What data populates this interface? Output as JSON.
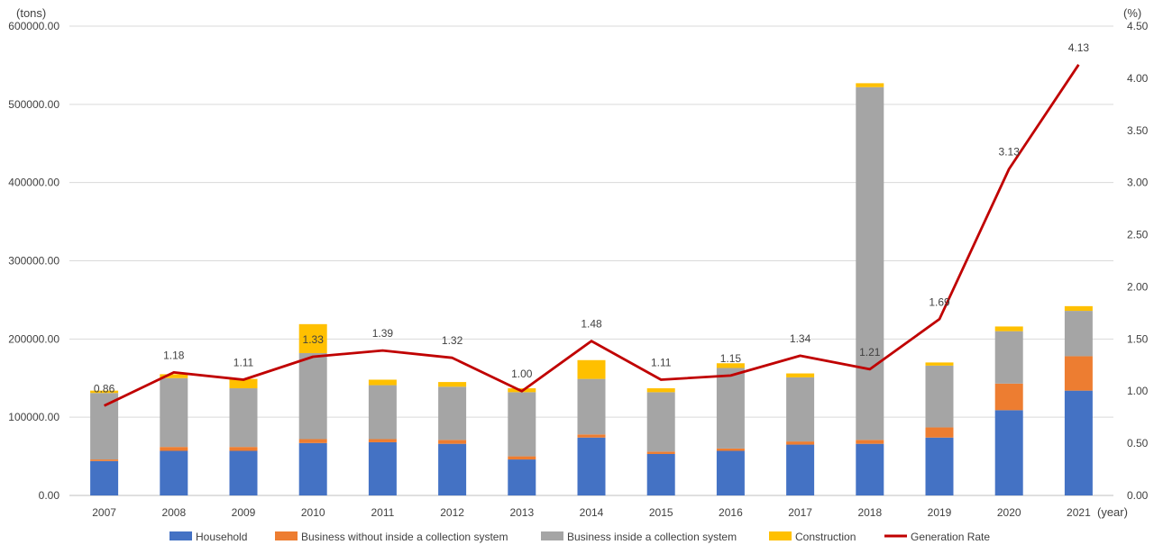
{
  "chart_data": {
    "type": "bar+line",
    "title": "",
    "left_unit": "(tons)",
    "right_unit": "(%)",
    "xlabel": "(year)",
    "categories": [
      "2007",
      "2008",
      "2009",
      "2010",
      "2011",
      "2012",
      "2013",
      "2014",
      "2015",
      "2016",
      "2017",
      "2018",
      "2019",
      "2020",
      "2021"
    ],
    "left_axis": {
      "min": 0,
      "max": 600000,
      "tick_labels": [
        "0.00",
        "100000.00",
        "200000.00",
        "300000.00",
        "400000.00",
        "500000.00",
        "600000.00"
      ],
      "tick_values": [
        0,
        100000,
        200000,
        300000,
        400000,
        500000,
        600000
      ]
    },
    "right_axis": {
      "min": 0,
      "max": 4.5,
      "tick_labels": [
        "0.00",
        "0.50",
        "1.00",
        "1.50",
        "2.00",
        "2.50",
        "3.00",
        "3.50",
        "4.00",
        "4.50"
      ],
      "tick_values": [
        0,
        0.5,
        1,
        1.5,
        2,
        2.5,
        3,
        3.5,
        4,
        4.5
      ]
    },
    "grid": "horizontal",
    "legend_position": "bottom",
    "series": [
      {
        "name": "Household",
        "kind": "bar",
        "color": "#4472C4",
        "values": [
          44000,
          57000,
          57000,
          67000,
          68000,
          66000,
          46000,
          74000,
          53000,
          57000,
          65000,
          66000,
          74000,
          109000,
          134000
        ]
      },
      {
        "name": "Business without inside a collection system",
        "kind": "bar",
        "color": "#ED7D31",
        "values": [
          2000,
          5000,
          5000,
          5000,
          4000,
          5000,
          4000,
          4000,
          3000,
          3000,
          4000,
          5000,
          13000,
          34000,
          44000
        ]
      },
      {
        "name": "Business inside a collection system",
        "kind": "bar",
        "color": "#A5A5A5",
        "values": [
          85000,
          88000,
          75000,
          110000,
          69000,
          68000,
          82000,
          71000,
          76000,
          103000,
          82000,
          451000,
          79000,
          67000,
          58000
        ]
      },
      {
        "name": "Construction",
        "kind": "bar",
        "color": "#FFC000",
        "values": [
          3000,
          5000,
          12000,
          37000,
          7000,
          6000,
          5000,
          24000,
          5000,
          6000,
          5000,
          5000,
          4000,
          6000,
          6000
        ]
      },
      {
        "name": "Generation Rate",
        "kind": "line",
        "axis": "right",
        "color": "#C00000",
        "values": [
          0.86,
          1.18,
          1.11,
          1.33,
          1.39,
          1.32,
          1.0,
          1.48,
          1.11,
          1.15,
          1.34,
          1.21,
          1.69,
          3.13,
          4.13
        ],
        "labels": [
          "0.86",
          "1.18",
          "1.11",
          "1.33",
          "1.39",
          "1.32",
          "1.00",
          "1.48",
          "1.11",
          "1.15",
          "1.34",
          "1.21",
          "1.69",
          "3.13",
          "4.13"
        ]
      }
    ]
  }
}
